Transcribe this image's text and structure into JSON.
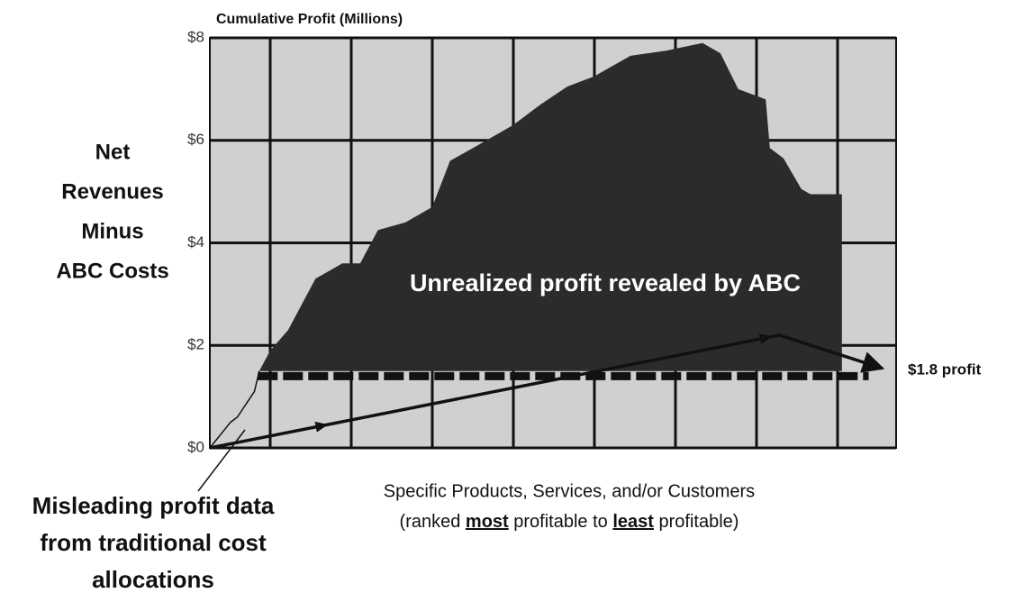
{
  "chart_data": {
    "type": "area",
    "ylabel_top": "Cumulative Profit (Millions)",
    "ylabel_lines": [
      "Net",
      "Revenues",
      "Minus",
      "ABC Costs"
    ],
    "area_label": "Unrealized profit revealed by ABC",
    "end_label": "$1.8 profit",
    "xlabel": "Specific Products, Services, and/or Customers",
    "xlabel2_parts": [
      "(ranked ",
      "most",
      " profitable to ",
      "least",
      " profitable)"
    ],
    "note_lines": [
      "Misleading profit data",
      "from traditional cost",
      "allocations"
    ],
    "xlim": [
      0,
      100
    ],
    "ylim": [
      0,
      8
    ],
    "yticks": [
      {
        "value": 0,
        "label": "$0"
      },
      {
        "value": 2,
        "label": "$2"
      },
      {
        "value": 4,
        "label": "$4"
      },
      {
        "value": 6,
        "label": "$6"
      },
      {
        "value": 8,
        "label": "$8"
      }
    ],
    "grid": true,
    "series": [
      {
        "style": "area",
        "color": "#2b2b2b",
        "x": [
          7.2,
          8.8,
          11.4,
          15.4,
          19.3,
          21.9,
          24.5,
          28.5,
          32.4,
          35,
          39,
          44.2,
          48.2,
          52.1,
          56,
          61.3,
          66.5,
          71.8,
          74.4,
          77,
          81,
          81.6,
          83.6,
          86.2,
          87.5,
          92.1,
          92.1
        ],
        "values": [
          1.5,
          1.9,
          2.3,
          3.3,
          3.6,
          3.6,
          4.25,
          4.4,
          4.7,
          5.6,
          5.9,
          6.3,
          6.7,
          7.05,
          7.25,
          7.65,
          7.75,
          7.9,
          7.7,
          7.0,
          6.8,
          5.85,
          5.65,
          5.05,
          4.95,
          4.95,
          1.5
        ]
      },
      {
        "style": "dashed",
        "color": "#111111",
        "x": [
          7,
          96
        ],
        "values": [
          1.4,
          1.4
        ]
      },
      {
        "style": "thin",
        "color": "#111111",
        "x": [
          0,
          3,
          4,
          6,
          6.5,
          7.2
        ],
        "values": [
          0,
          0.5,
          0.6,
          1.0,
          1.1,
          1.5
        ]
      },
      {
        "style": "arrow",
        "color": "#111111",
        "x": [
          0,
          83,
          98
        ],
        "values": [
          0,
          2.2,
          1.55
        ]
      }
    ]
  }
}
